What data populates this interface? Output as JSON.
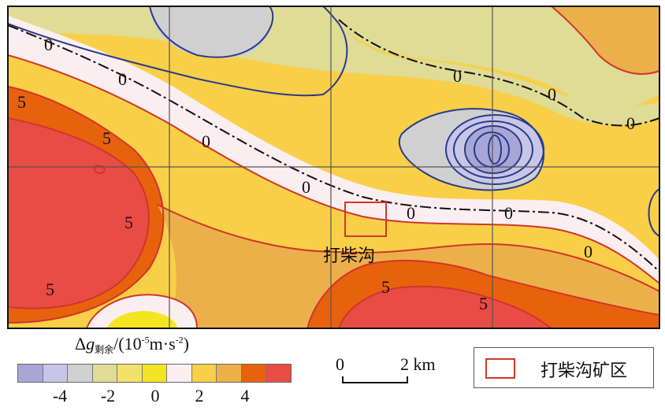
{
  "map": {
    "contour_labels": [
      {
        "value": "0"
      },
      {
        "value": "0"
      },
      {
        "value": "0"
      },
      {
        "value": "0"
      },
      {
        "value": "0"
      },
      {
        "value": "0"
      },
      {
        "value": "0"
      },
      {
        "value": "0"
      },
      {
        "value": "0"
      },
      {
        "value": "5"
      },
      {
        "value": "5"
      },
      {
        "value": "5"
      },
      {
        "value": "5"
      },
      {
        "value": "5"
      },
      {
        "value": "5"
      }
    ],
    "place_label": "打柴沟"
  },
  "colorbar": {
    "title_prefix": "Δ",
    "title_var": "g",
    "title_subscript": "剩余",
    "title_unit_a": "/(10",
    "title_exp1": "-5",
    "title_unit_b": "m·s",
    "title_exp2": "-2",
    "title_unit_c": ")",
    "swatch_colors": [
      "#a9a6d6",
      "#c8c6e6",
      "#cfd0cf",
      "#dedc95",
      "#f3e06a",
      "#f4e522",
      "#fbeef0",
      "#f8cf47",
      "#ecb04a",
      "#e8620e",
      "#e94b45"
    ],
    "tick_labels": [
      "-4",
      "-2",
      "0",
      "2",
      "4"
    ]
  },
  "scale_bar": {
    "start_label": "0",
    "end_label": "2 km"
  },
  "legend": {
    "label": "打柴沟矿区",
    "outline_color": "#d2352a"
  },
  "colors": {
    "zero_contour": "#111111",
    "positive_contour": "#d2352a",
    "negative_contour": "#2a3a8c",
    "grid": "#555555"
  }
}
